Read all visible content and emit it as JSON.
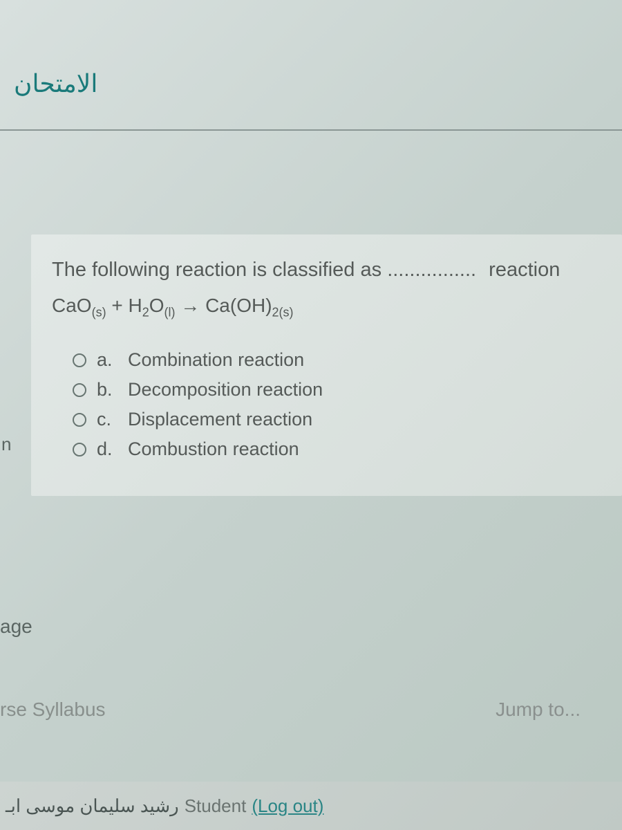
{
  "header": {
    "exam_title": "الامتحان"
  },
  "question": {
    "text_prefix": "The following reaction is classified as",
    "text_dots": "................",
    "text_suffix": "reaction",
    "equation_html": "CaO<span class='sub'>(s)</span> + H<span class='sub'>2</span>O<span class='sub'>(l)</span> → Ca(OH)<span class='sub'>2(s)</span>",
    "options": [
      {
        "letter": "a.",
        "text": "Combination reaction"
      },
      {
        "letter": "b.",
        "text": "Decomposition reaction"
      },
      {
        "letter": "c.",
        "text": "Displacement reaction"
      },
      {
        "letter": "d.",
        "text": "Combustion reaction"
      }
    ]
  },
  "side": {
    "edge_char": "n"
  },
  "nav": {
    "page_label": "age",
    "syllabus_label": "rse Syllabus",
    "jump_label": "Jump to..."
  },
  "footer": {
    "student_name_ar": "رشيد سليمان موسى ابـ",
    "student_label": "Student",
    "logout_label": "(Log out)"
  },
  "colors": {
    "accent": "#1a7a7a",
    "text": "#555a58",
    "muted": "#8a908e"
  }
}
